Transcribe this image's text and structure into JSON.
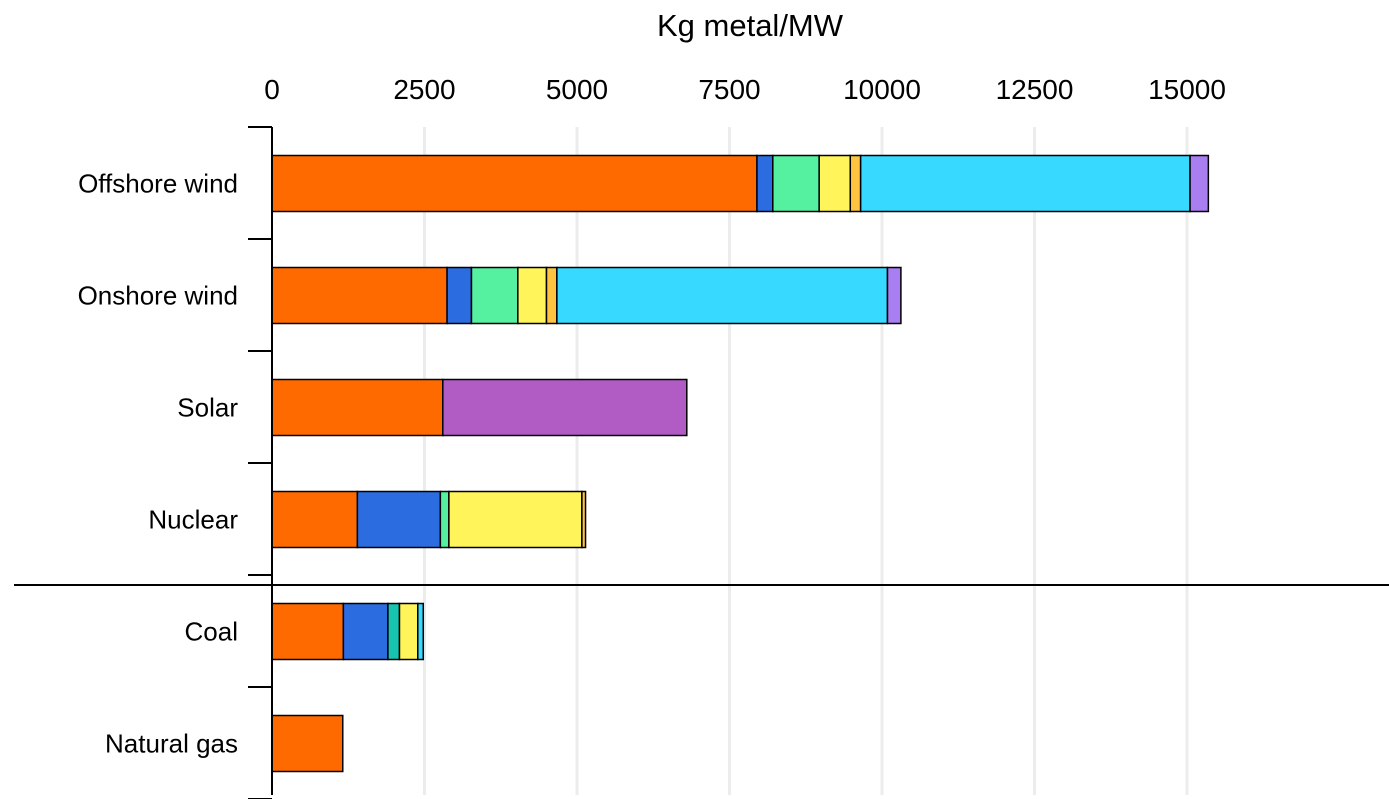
{
  "chart_data": {
    "type": "bar",
    "orientation": "horizontal",
    "stacked": true,
    "xlabel": "Kg metal/MW",
    "xlabel_position": "top",
    "xlim": [
      0,
      17000
    ],
    "xticks": [
      "0",
      "2500",
      "5000",
      "7500",
      "10000",
      "12500",
      "15000"
    ],
    "xtick_values": [
      0,
      2500,
      5000,
      7500,
      10000,
      12500,
      15000
    ],
    "grid": "vertical",
    "legend": "none",
    "divider_after_category": "Nuclear",
    "categories": [
      "Offshore wind",
      "Onshore wind",
      "Solar",
      "Nuclear",
      "Coal",
      "Natural gas"
    ],
    "segment_colors": [
      "#ff6a00",
      "#2b6de0",
      "#55f0a0",
      "#fff55a",
      "#ffc43d",
      "#38d9ff",
      "#a97ef0",
      "#b05cc4",
      "#16c4b0"
    ],
    "stacks": [
      {
        "category": "Offshore wind",
        "segments": [
          {
            "value": 7950,
            "color": "#ff6a00"
          },
          {
            "value": 260,
            "color": "#2b6de0"
          },
          {
            "value": 760,
            "color": "#55f0a0"
          },
          {
            "value": 510,
            "color": "#fff55a"
          },
          {
            "value": 170,
            "color": "#ffc43d"
          },
          {
            "value": 5400,
            "color": "#38d9ff"
          },
          {
            "value": 300,
            "color": "#a97ef0"
          }
        ]
      },
      {
        "category": "Onshore wind",
        "segments": [
          {
            "value": 2870,
            "color": "#ff6a00"
          },
          {
            "value": 400,
            "color": "#2b6de0"
          },
          {
            "value": 760,
            "color": "#55f0a0"
          },
          {
            "value": 470,
            "color": "#fff55a"
          },
          {
            "value": 170,
            "color": "#ffc43d"
          },
          {
            "value": 5420,
            "color": "#38d9ff"
          },
          {
            "value": 220,
            "color": "#a97ef0"
          }
        ]
      },
      {
        "category": "Solar",
        "segments": [
          {
            "value": 2800,
            "color": "#ff6a00"
          },
          {
            "value": 4000,
            "color": "#b05cc4"
          }
        ]
      },
      {
        "category": "Nuclear",
        "segments": [
          {
            "value": 1400,
            "color": "#ff6a00"
          },
          {
            "value": 1360,
            "color": "#2b6de0"
          },
          {
            "value": 140,
            "color": "#55f0a0"
          },
          {
            "value": 2180,
            "color": "#fff55a"
          },
          {
            "value": 60,
            "color": "#ffc43d"
          }
        ]
      },
      {
        "category": "Coal",
        "segments": [
          {
            "value": 1170,
            "color": "#ff6a00"
          },
          {
            "value": 730,
            "color": "#2b6de0"
          },
          {
            "value": 190,
            "color": "#16c4b0"
          },
          {
            "value": 300,
            "color": "#fff55a"
          },
          {
            "value": 90,
            "color": "#38d9ff"
          }
        ]
      },
      {
        "category": "Natural gas",
        "segments": [
          {
            "value": 1160,
            "color": "#ff6a00"
          }
        ]
      }
    ]
  }
}
